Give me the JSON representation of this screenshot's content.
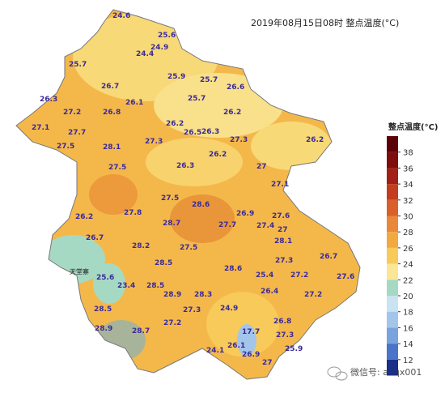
{
  "title": "2019年08月15日08时  整点温度(°C)",
  "legend": {
    "title": "整点温度(°C)",
    "ticks": [
      38,
      36,
      34,
      32,
      30,
      28,
      26,
      24,
      22,
      20,
      18,
      16,
      14,
      12
    ],
    "colors": [
      "#5c0008",
      "#7e0d0d",
      "#a11f16",
      "#c23e1f",
      "#d9602a",
      "#e9873a",
      "#f2a93f",
      "#f7ca5a",
      "#fbe596",
      "#a6d9c4",
      "#c9e3f2",
      "#a4c5ea",
      "#7aa2dc",
      "#4a74c9",
      "#1b2f86"
    ]
  },
  "stations": [
    24.6,
    25.6,
    24.9,
    24.4,
    25.7,
    25.9,
    25.7,
    26.7,
    26.6,
    26.3,
    25.7,
    26.1,
    27.2,
    26.8,
    26.2,
    26.2,
    27.1,
    27.7,
    26.5,
    26.3,
    27.3,
    27.3,
    26.2,
    28.1,
    27.5,
    26.2,
    27.5,
    26.3,
    27,
    27.1,
    27.5,
    28.6,
    26.2,
    27.8,
    26.9,
    27.6,
    28.7,
    27.7,
    27.4,
    27,
    26.7,
    28.1,
    27.5,
    28.2,
    26.7,
    27.3,
    28.5,
    28.6,
    27.2,
    27.6,
    25.6,
    28.5,
    23.4,
    28.9,
    28.3,
    25.4,
    27.3,
    24.9,
    28.5,
    26.4,
    27.2,
    26.8,
    27.2,
    28.9,
    28.7,
    27.3,
    17.7,
    24.1,
    25.9,
    26.1,
    26.9,
    27
  ],
  "place": "天堂寨",
  "watermark": "微信号: ahqx001"
}
